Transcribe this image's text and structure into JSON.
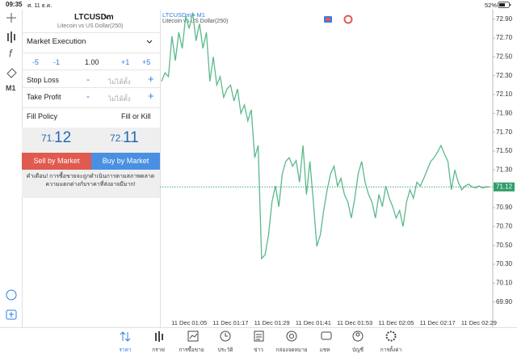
{
  "status_bar": {
    "time": "09:35",
    "date": "ศ. 11 ธ.ค.",
    "battery": "52%"
  },
  "toolbar": {
    "timeframe": "M1"
  },
  "order_panel": {
    "symbol": "LTCUSDm",
    "description": "Litecoin vs US Dollar(250)",
    "execution": "Market Execution",
    "volume": {
      "minus5": "-5",
      "minus1": "-1",
      "value": "1.00",
      "plus1": "+1",
      "plus5": "+5"
    },
    "stop_loss": {
      "label": "Stop Loss",
      "minus": "-",
      "value": "ไม่ได้ตั้ง",
      "plus": "+"
    },
    "take_profit": {
      "label": "Take Profit",
      "minus": "-",
      "value": "ไม่ได้ตั้ง",
      "plus": "+"
    },
    "fill_policy": {
      "label": "Fill Policy",
      "value": "Fill or Kill"
    },
    "sell_price": {
      "small": "71.",
      "large": "12"
    },
    "buy_price": {
      "small": "72.",
      "large": "11"
    },
    "sell_button": "Sell by Market",
    "buy_button": "Buy by Market",
    "warning": "คำเตือน! การซื้อขายจะถูกดำเนินการตามสภาพตลาด ความแตกต่างกับราคาที่ส่งอาจมีมาก!"
  },
  "chart_data": {
    "type": "line",
    "title": "LTCUSDm • M1",
    "subtitle": "Litecoin vs US Dollar(250)",
    "color": "#5bb98c",
    "grid": false,
    "categories": [
      null,
      null,
      null,
      null,
      null,
      null,
      null,
      null,
      "11 Dec 01:05",
      null,
      null,
      null,
      null,
      null,
      null,
      null,
      null,
      null,
      null,
      null,
      "11 Dec 01:17",
      null,
      null,
      null,
      null,
      null,
      null,
      null,
      null,
      null,
      null,
      null,
      "11 Dec 01:29",
      null,
      null,
      null,
      null,
      null,
      null,
      null,
      null,
      null,
      null,
      null,
      "11 Dec 01:41",
      null,
      null,
      null,
      null,
      null,
      null,
      null,
      null,
      null,
      null,
      null,
      "11 Dec 01:53",
      null,
      null,
      null,
      null,
      null,
      null,
      null,
      null,
      null,
      null,
      null,
      "11 Dec 02:05",
      null,
      null,
      null,
      null,
      null,
      null,
      null,
      null,
      null,
      null,
      null,
      "11 Dec 02:17",
      null,
      null,
      null,
      null,
      null,
      null,
      null,
      null,
      null,
      null,
      null,
      "11 Dec 02:29",
      null,
      null,
      null
    ],
    "values": [
      72.24,
      72.33,
      72.29,
      72.72,
      72.46,
      72.76,
      72.59,
      72.93,
      72.8,
      72.97,
      72.67,
      72.85,
      72.59,
      72.76,
      72.24,
      72.5,
      72.2,
      72.29,
      72.07,
      72.16,
      72.2,
      72.03,
      72.16,
      71.9,
      71.99,
      71.82,
      71.94,
      71.43,
      71.56,
      70.36,
      70.4,
      70.61,
      70.96,
      71.13,
      70.91,
      71.26,
      71.39,
      71.43,
      71.34,
      71.4,
      71.17,
      71.56,
      71.04,
      71.39,
      70.96,
      70.49,
      70.61,
      70.87,
      71.09,
      71.26,
      71.34,
      71.13,
      71.21,
      71.04,
      70.96,
      70.79,
      71.0,
      71.26,
      71.39,
      71.17,
      71.04,
      70.96,
      70.79,
      71.04,
      70.91,
      71.13,
      71.0,
      70.91,
      70.79,
      70.87,
      70.7,
      70.96,
      71.09,
      71.0,
      71.17,
      71.13,
      71.21,
      71.3,
      71.39,
      71.43,
      71.49,
      71.56,
      71.47,
      71.39,
      71.09,
      71.3,
      71.17,
      71.09,
      71.13,
      71.15,
      71.12,
      71.11,
      71.13,
      71.11,
      71.12,
      71.12
    ],
    "ylim": [
      69.7,
      73.0
    ],
    "yticks": [
      {
        "value": 72.9,
        "label": "72.90"
      },
      {
        "value": 72.7,
        "label": "72.70"
      },
      {
        "value": 72.5,
        "label": "72.50"
      },
      {
        "value": 72.3,
        "label": "72.30"
      },
      {
        "value": 72.1,
        "label": "72.10"
      },
      {
        "value": 71.9,
        "label": "71.90"
      },
      {
        "value": 71.7,
        "label": "71.70"
      },
      {
        "value": 71.5,
        "label": "71.50"
      },
      {
        "value": 71.3,
        "label": "71.30"
      },
      {
        "value": 70.9,
        "label": "70.90"
      },
      {
        "value": 70.7,
        "label": "70.70"
      },
      {
        "value": 70.5,
        "label": "70.50"
      },
      {
        "value": 70.3,
        "label": "70.30"
      },
      {
        "value": 70.1,
        "label": "70.10"
      },
      {
        "value": 69.9,
        "label": "69.90"
      }
    ],
    "last_price": 71.12,
    "last_price_color": "#2f9e6a"
  },
  "tab_bar": [
    "ราคา",
    "กราฟ",
    "การซื้อขาย",
    "ประวัติ",
    "ข่าว",
    "กล่องจดหมาย",
    "แชท",
    "บัญชี",
    "การตั้งค่า"
  ]
}
